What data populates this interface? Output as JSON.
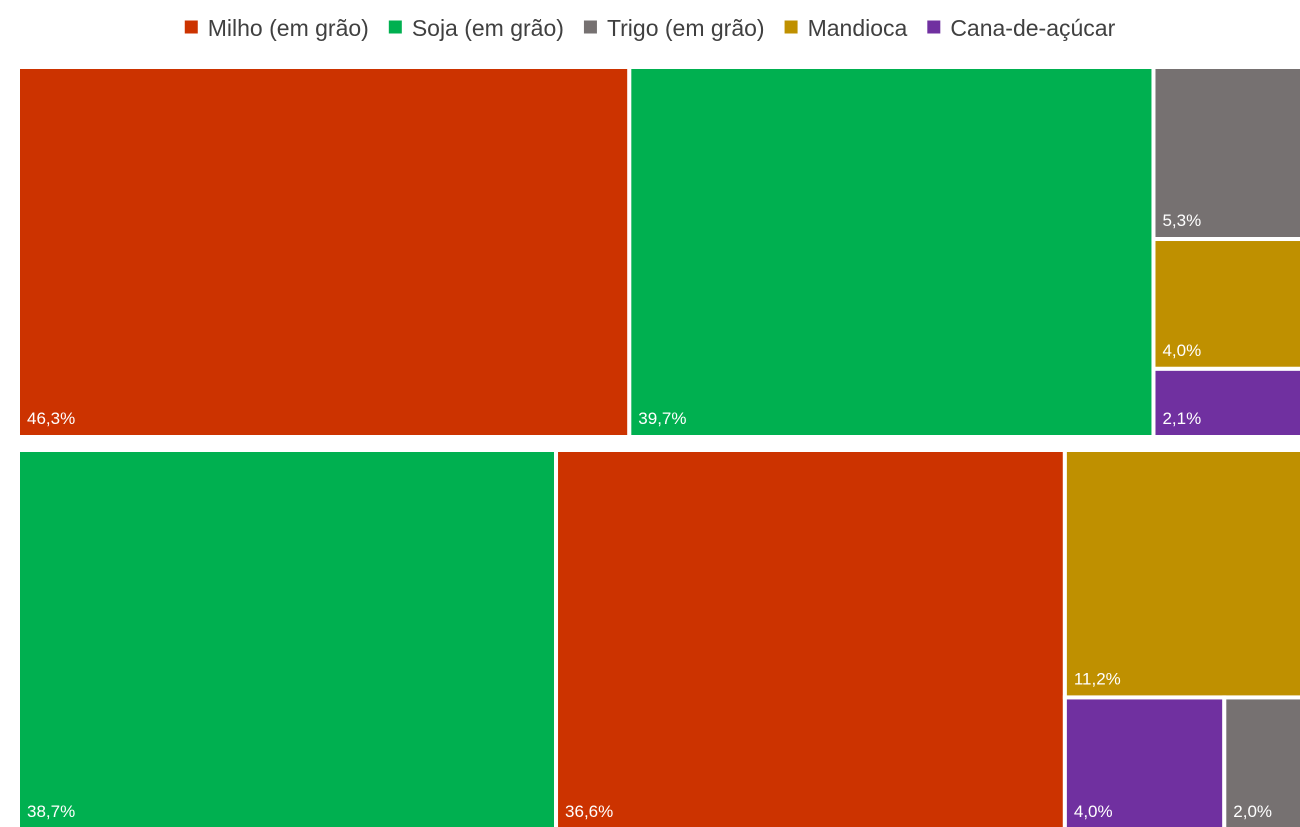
{
  "chart_data": {
    "type": "treemap",
    "title": "",
    "legend_position": "top",
    "categories": [
      {
        "name": "Milho (em grão)",
        "color": "#CC3300"
      },
      {
        "name": "Soja (em grão)",
        "color": "#00B050"
      },
      {
        "name": "Trigo (em grão)",
        "color": "#767171"
      },
      {
        "name": "Mandioca",
        "color": "#BF9000"
      },
      {
        "name": "Cana-de-açúcar",
        "color": "#7030A0"
      }
    ],
    "groups": [
      {
        "items": [
          {
            "category": "Milho (em grão)",
            "value": 46.3,
            "label": "46,3%"
          },
          {
            "category": "Soja (em grão)",
            "value": 39.7,
            "label": "39,7%"
          },
          {
            "category": "Trigo (em grão)",
            "value": 5.3,
            "label": "5,3%"
          },
          {
            "category": "Mandioca",
            "value": 4.0,
            "label": "4,0%"
          },
          {
            "category": "Cana-de-açúcar",
            "value": 2.1,
            "label": "2,1%"
          }
        ]
      },
      {
        "items": [
          {
            "category": "Soja (em grão)",
            "value": 38.7,
            "label": "38,7%"
          },
          {
            "category": "Milho (em grão)",
            "value": 36.6,
            "label": "36,6%"
          },
          {
            "category": "Mandioca",
            "value": 11.2,
            "label": "11,2%"
          },
          {
            "category": "Cana-de-açúcar",
            "value": 4.0,
            "label": "4,0%"
          },
          {
            "category": "Trigo (em grão)",
            "value": 2.0,
            "label": "2,0%"
          }
        ]
      }
    ]
  }
}
